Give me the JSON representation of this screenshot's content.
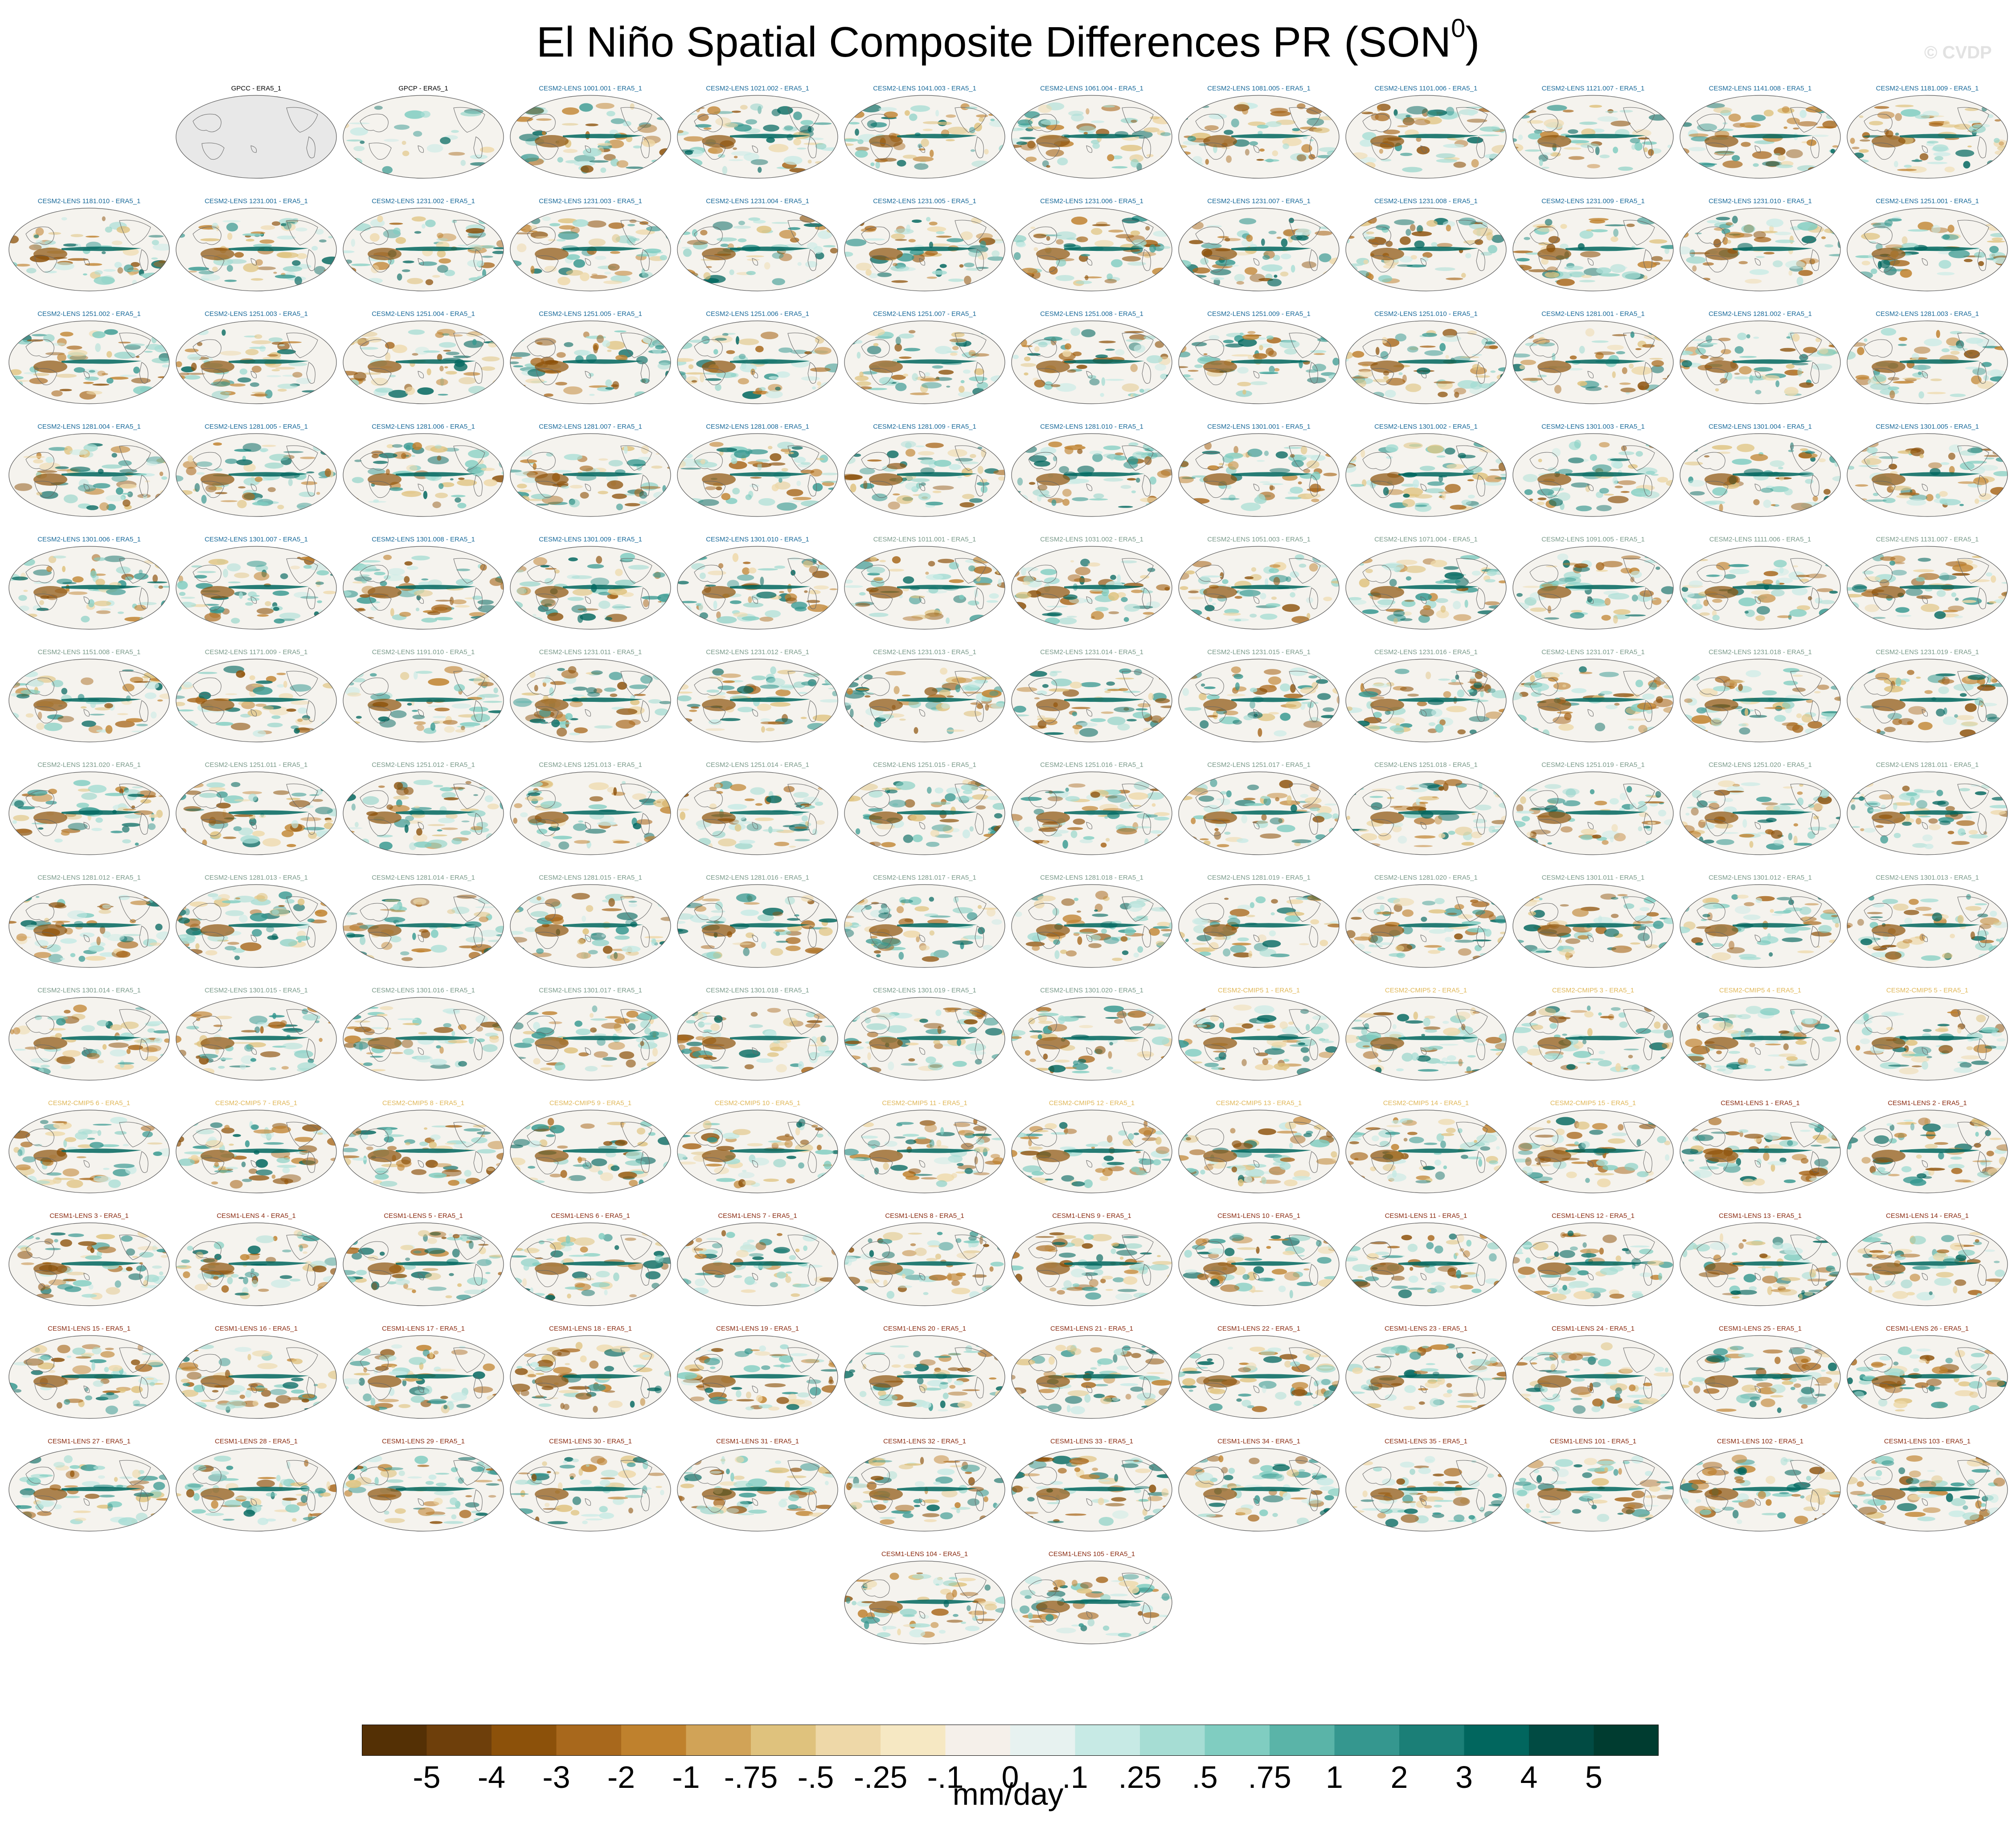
{
  "chart_data": {
    "type": "heatmap",
    "title": "El Niño Spatial Composite Differences PR (SON",
    "title_superscript": "0",
    "watermark": "© CVDP",
    "units": "mm/day",
    "colorbar": {
      "tick_labels": [
        "-5",
        "-4",
        "-3",
        "-2",
        "-1",
        "-.75",
        "-.5",
        "-.25",
        "-.1",
        "0",
        ".1",
        ".25",
        ".5",
        ".75",
        "1",
        "2",
        "3",
        "4",
        "5"
      ],
      "colors": [
        "#543005",
        "#6e3f0b",
        "#8c510a",
        "#a8681c",
        "#bf812d",
        "#d1a357",
        "#dfc27d",
        "#eed8a8",
        "#f6e8c3",
        "#f5f0ea",
        "#e7f2f0",
        "#c7eae5",
        "#a6ddd4",
        "#80cdc1",
        "#5ab4a8",
        "#35978f",
        "#1b7f77",
        "#01665e",
        "#014b43",
        "#003c30"
      ]
    },
    "panel_groups": [
      {
        "color": "#000000",
        "panels": [
          "GPCC - ERA5_1",
          "GPCP - ERA5_1"
        ]
      },
      {
        "color": "#1a6a9a",
        "panels": [
          "CESM2-LENS 1001.001 - ERA5_1",
          "CESM2-LENS 1021.002 - ERA5_1",
          "CESM2-LENS 1041.003 - ERA5_1",
          "CESM2-LENS 1061.004 - ERA5_1",
          "CESM2-LENS 1081.005 - ERA5_1",
          "CESM2-LENS 1101.006 - ERA5_1",
          "CESM2-LENS 1121.007 - ERA5_1",
          "CESM2-LENS 1141.008 - ERA5_1",
          "CESM2-LENS 1181.009 - ERA5_1",
          "CESM2-LENS 1181.010 - ERA5_1",
          "CESM2-LENS 1231.001 - ERA5_1",
          "CESM2-LENS 1231.002 - ERA5_1",
          "CESM2-LENS 1231.003 - ERA5_1",
          "CESM2-LENS 1231.004 - ERA5_1",
          "CESM2-LENS 1231.005 - ERA5_1",
          "CESM2-LENS 1231.006 - ERA5_1",
          "CESM2-LENS 1231.007 - ERA5_1",
          "CESM2-LENS 1231.008 - ERA5_1",
          "CESM2-LENS 1231.009 - ERA5_1",
          "CESM2-LENS 1231.010 - ERA5_1",
          "CESM2-LENS 1251.001 - ERA5_1",
          "CESM2-LENS 1251.002 - ERA5_1",
          "CESM2-LENS 1251.003 - ERA5_1",
          "CESM2-LENS 1251.004 - ERA5_1",
          "CESM2-LENS 1251.005 - ERA5_1",
          "CESM2-LENS 1251.006 - ERA5_1",
          "CESM2-LENS 1251.007 - ERA5_1",
          "CESM2-LENS 1251.008 - ERA5_1",
          "CESM2-LENS 1251.009 - ERA5_1",
          "CESM2-LENS 1251.010 - ERA5_1",
          "CESM2-LENS 1281.001 - ERA5_1",
          "CESM2-LENS 1281.002 - ERA5_1",
          "CESM2-LENS 1281.003 - ERA5_1",
          "CESM2-LENS 1281.004 - ERA5_1",
          "CESM2-LENS 1281.005 - ERA5_1",
          "CESM2-LENS 1281.006 - ERA5_1",
          "CESM2-LENS 1281.007 - ERA5_1",
          "CESM2-LENS 1281.008 - ERA5_1",
          "CESM2-LENS 1281.009 - ERA5_1",
          "CESM2-LENS 1281.010 - ERA5_1",
          "CESM2-LENS 1301.001 - ERA5_1",
          "CESM2-LENS 1301.002 - ERA5_1",
          "CESM2-LENS 1301.003 - ERA5_1",
          "CESM2-LENS 1301.004 - ERA5_1",
          "CESM2-LENS 1301.005 - ERA5_1",
          "CESM2-LENS 1301.006 - ERA5_1",
          "CESM2-LENS 1301.007 - ERA5_1",
          "CESM2-LENS 1301.008 - ERA5_1",
          "CESM2-LENS 1301.009 - ERA5_1",
          "CESM2-LENS 1301.010 - ERA5_1"
        ]
      },
      {
        "color": "#7a9a8a",
        "panels": [
          "CESM2-LENS 1011.001 - ERA5_1",
          "CESM2-LENS 1031.002 - ERA5_1",
          "CESM2-LENS 1051.003 - ERA5_1",
          "CESM2-LENS 1071.004 - ERA5_1",
          "CESM2-LENS 1091.005 - ERA5_1",
          "CESM2-LENS 1111.006 - ERA5_1",
          "CESM2-LENS 1131.007 - ERA5_1",
          "CESM2-LENS 1151.008 - ERA5_1",
          "CESM2-LENS 1171.009 - ERA5_1",
          "CESM2-LENS 1191.010 - ERA5_1",
          "CESM2-LENS 1231.011 - ERA5_1",
          "CESM2-LENS 1231.012 - ERA5_1",
          "CESM2-LENS 1231.013 - ERA5_1",
          "CESM2-LENS 1231.014 - ERA5_1",
          "CESM2-LENS 1231.015 - ERA5_1",
          "CESM2-LENS 1231.016 - ERA5_1",
          "CESM2-LENS 1231.017 - ERA5_1",
          "CESM2-LENS 1231.018 - ERA5_1",
          "CESM2-LENS 1231.019 - ERA5_1",
          "CESM2-LENS 1231.020 - ERA5_1",
          "CESM2-LENS 1251.011 - ERA5_1",
          "CESM2-LENS 1251.012 - ERA5_1",
          "CESM2-LENS 1251.013 - ERA5_1",
          "CESM2-LENS 1251.014 - ERA5_1",
          "CESM2-LENS 1251.015 - ERA5_1",
          "CESM2-LENS 1251.016 - ERA5_1",
          "CESM2-LENS 1251.017 - ERA5_1",
          "CESM2-LENS 1251.018 - ERA5_1",
          "CESM2-LENS 1251.019 - ERA5_1",
          "CESM2-LENS 1251.020 - ERA5_1",
          "CESM2-LENS 1281.011 - ERA5_1",
          "CESM2-LENS 1281.012 - ERA5_1",
          "CESM2-LENS 1281.013 - ERA5_1",
          "CESM2-LENS 1281.014 - ERA5_1",
          "CESM2-LENS 1281.015 - ERA5_1",
          "CESM2-LENS 1281.016 - ERA5_1",
          "CESM2-LENS 1281.017 - ERA5_1",
          "CESM2-LENS 1281.018 - ERA5_1",
          "CESM2-LENS 1281.019 - ERA5_1",
          "CESM2-LENS 1281.020 - ERA5_1",
          "CESM2-LENS 1301.011 - ERA5_1",
          "CESM2-LENS 1301.012 - ERA5_1",
          "CESM2-LENS 1301.013 - ERA5_1",
          "CESM2-LENS 1301.014 - ERA5_1",
          "CESM2-LENS 1301.015 - ERA5_1",
          "CESM2-LENS 1301.016 - ERA5_1",
          "CESM2-LENS 1301.017 - ERA5_1",
          "CESM2-LENS 1301.018 - ERA5_1",
          "CESM2-LENS 1301.019 - ERA5_1",
          "CESM2-LENS 1301.020 - ERA5_1"
        ]
      },
      {
        "color": "#e0b85a",
        "panels": [
          "CESM2-CMIP5 1 - ERA5_1",
          "CESM2-CMIP5 2 - ERA5_1",
          "CESM2-CMIP5 3 - ERA5_1",
          "CESM2-CMIP5 4 - ERA5_1",
          "CESM2-CMIP5 5 - ERA5_1",
          "CESM2-CMIP5 6 - ERA5_1",
          "CESM2-CMIP5 7 - ERA5_1",
          "CESM2-CMIP5 8 - ERA5_1",
          "CESM2-CMIP5 9 - ERA5_1",
          "CESM2-CMIP5 10 - ERA5_1",
          "CESM2-CMIP5 11 - ERA5_1",
          "CESM2-CMIP5 12 - ERA5_1",
          "CESM2-CMIP5 13 - ERA5_1",
          "CESM2-CMIP5 14 - ERA5_1",
          "CESM2-CMIP5 15 - ERA5_1"
        ]
      },
      {
        "color": "#8b2c12",
        "panels": [
          "CESM1-LENS 1 - ERA5_1",
          "CESM1-LENS 2 - ERA5_1",
          "CESM1-LENS 3 - ERA5_1",
          "CESM1-LENS 4 - ERA5_1",
          "CESM1-LENS 5 - ERA5_1",
          "CESM1-LENS 6 - ERA5_1",
          "CESM1-LENS 7 - ERA5_1",
          "CESM1-LENS 8 - ERA5_1",
          "CESM1-LENS 9 - ERA5_1",
          "CESM1-LENS 10 - ERA5_1",
          "CESM1-LENS 11 - ERA5_1",
          "CESM1-LENS 12 - ERA5_1",
          "CESM1-LENS 13 - ERA5_1",
          "CESM1-LENS 14 - ERA5_1",
          "CESM1-LENS 15 - ERA5_1",
          "CESM1-LENS 16 - ERA5_1",
          "CESM1-LENS 17 - ERA5_1",
          "CESM1-LENS 18 - ERA5_1",
          "CESM1-LENS 19 - ERA5_1",
          "CESM1-LENS 20 - ERA5_1",
          "CESM1-LENS 21 - ERA5_1",
          "CESM1-LENS 22 - ERA5_1",
          "CESM1-LENS 23 - ERA5_1",
          "CESM1-LENS 24 - ERA5_1",
          "CESM1-LENS 25 - ERA5_1",
          "CESM1-LENS 26 - ERA5_1",
          "CESM1-LENS 27 - ERA5_1",
          "CESM1-LENS 28 - ERA5_1",
          "CESM1-LENS 29 - ERA5_1",
          "CESM1-LENS 30 - ERA5_1",
          "CESM1-LENS 31 - ERA5_1",
          "CESM1-LENS 32 - ERA5_1",
          "CESM1-LENS 33 - ERA5_1",
          "CESM1-LENS 34 - ERA5_1",
          "CESM1-LENS 35 - ERA5_1",
          "CESM1-LENS 101 - ERA5_1",
          "CESM1-LENS 102 - ERA5_1",
          "CESM1-LENS 103 - ERA5_1",
          "CESM1-LENS 104 - ERA5_1",
          "CESM1-LENS 105 - ERA5_1"
        ]
      }
    ]
  }
}
